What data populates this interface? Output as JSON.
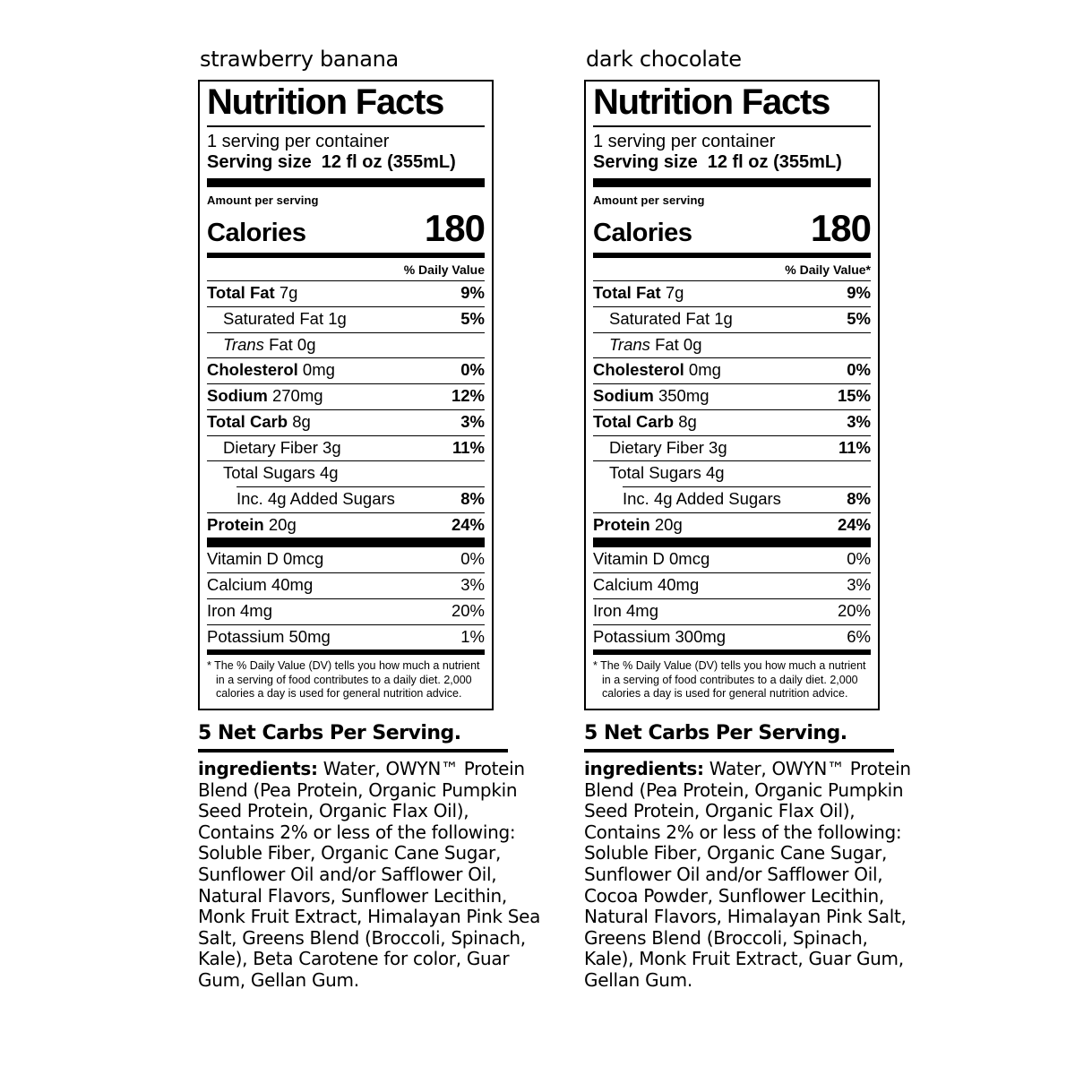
{
  "labels": [
    {
      "flavor": "strawberry banana",
      "title": "Nutrition Facts",
      "servings_per_container": "1 serving per container",
      "serving_size_label": "Serving size",
      "serving_size_value": "12 fl oz (355mL)",
      "amount_per_serving": "Amount per serving",
      "calories_label": "Calories",
      "calories_value": "180",
      "daily_value_header": "% Daily Value",
      "nutrients": [
        {
          "b": "Total Fat ",
          "r": "7g",
          "dv": "9%"
        },
        {
          "r": "Saturated Fat 1g",
          "dv": "5%"
        },
        {
          "i": "Trans ",
          "r": "Fat 0g",
          "dv": ""
        },
        {
          "b": "Cholesterol ",
          "r": "0mg",
          "dv": "0%"
        },
        {
          "b": "Sodium ",
          "r": "270mg",
          "dv": "12%"
        },
        {
          "b": "Total Carb ",
          "r": "8g",
          "dv": "3%"
        },
        {
          "r": "Dietary Fiber 3g",
          "dv": "11%"
        },
        {
          "r": "Total Sugars 4g",
          "dv": ""
        },
        {
          "r": "Inc. 4g Added Sugars",
          "dv": "8%"
        },
        {
          "b": "Protein ",
          "r": "20g",
          "dv": "24%"
        }
      ],
      "vitamins": [
        {
          "r": "Vitamin D 0mcg",
          "dv": "0%"
        },
        {
          "r": "Calcium 40mg",
          "dv": "3%"
        },
        {
          "r": "Iron 4mg",
          "dv": "20%"
        },
        {
          "r": "Potassium 50mg",
          "dv": "1%"
        }
      ],
      "footnote": "* The % Daily Value (DV) tells you how much a nutrient in a serving of food contributes to a daily diet. 2,000 calories a day is used for general nutrition advice.",
      "net_carbs": "5 Net Carbs Per Serving.",
      "ingredients_label": "ingredients:",
      "ingredients_text": "Water, OWYN™ Protein Blend (Pea Protein, Organic Pumpkin Seed Protein, Organic Flax Oil), Contains 2% or less of the following: Soluble Fiber, Organic Cane Sugar, Sunflower Oil and/or Safflower Oil, Natural Flavors, Sunflower Lecithin, Monk Fruit Extract, Himalayan Pink Sea Salt, Greens Blend (Broccoli, Spinach, Kale), Beta Carotene for color, Guar Gum, Gellan Gum."
    },
    {
      "flavor": "dark chocolate",
      "title": "Nutrition Facts",
      "servings_per_container": "1 serving per container",
      "serving_size_label": "Serving size",
      "serving_size_value": "12 fl oz (355mL)",
      "amount_per_serving": "Amount per serving",
      "calories_label": "Calories",
      "calories_value": "180",
      "daily_value_header": "% Daily Value*",
      "nutrients": [
        {
          "b": "Total Fat ",
          "r": "7g",
          "dv": "9%"
        },
        {
          "r": "Saturated Fat 1g",
          "dv": "5%"
        },
        {
          "i": "Trans ",
          "r": "Fat 0g",
          "dv": ""
        },
        {
          "b": "Cholesterol ",
          "r": "0mg",
          "dv": "0%"
        },
        {
          "b": "Sodium ",
          "r": "350mg",
          "dv": "15%"
        },
        {
          "b": "Total Carb ",
          "r": "8g",
          "dv": "3%"
        },
        {
          "r": "Dietary Fiber 3g",
          "dv": "11%"
        },
        {
          "r": "Total Sugars 4g",
          "dv": ""
        },
        {
          "r": "Inc. 4g Added Sugars",
          "dv": "8%"
        },
        {
          "b": "Protein ",
          "r": "20g",
          "dv": "24%"
        }
      ],
      "vitamins": [
        {
          "r": "Vitamin D 0mcg",
          "dv": "0%"
        },
        {
          "r": "Calcium 40mg",
          "dv": "3%"
        },
        {
          "r": "Iron 4mg",
          "dv": "20%"
        },
        {
          "r": "Potassium 300mg",
          "dv": "6%"
        }
      ],
      "footnote": "* The % Daily Value (DV) tells you how much a nutrient in a serving of food contributes to a daily diet. 2,000 calories a day is used for general nutrition advice.",
      "net_carbs": "5 Net Carbs Per Serving.",
      "ingredients_label": "ingredients:",
      "ingredients_text": "Water, OWYN™ Protein Blend (Pea Protein, Organic Pumpkin Seed Protein, Organic Flax Oil), Contains 2% or less of the following: Soluble Fiber, Organic Cane Sugar, Sunflower Oil and/or Safflower Oil, Cocoa Powder, Sunflower Lecithin, Natural Flavors, Himalayan Pink Salt, Greens Blend (Broccoli, Spinach, Kale), Monk Fruit Extract, Guar Gum, Gellan Gum."
    }
  ]
}
